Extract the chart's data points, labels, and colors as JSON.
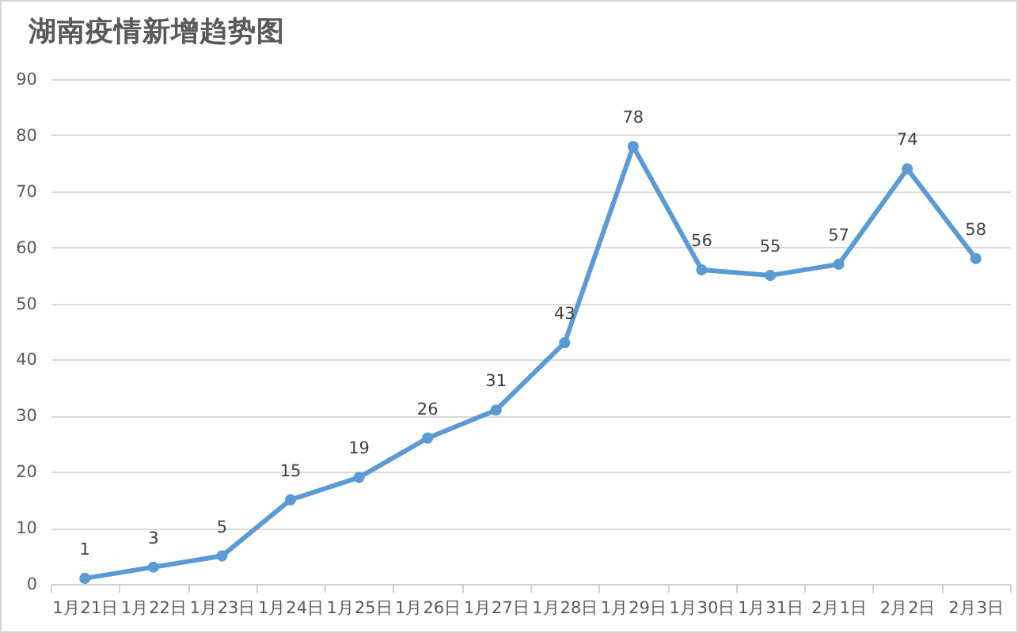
{
  "chart_data": {
    "type": "line",
    "title": "湖南疫情新增趋势图",
    "categories": [
      "1月21日",
      "1月22日",
      "1月23日",
      "1月24日",
      "1月25日",
      "1月26日",
      "1月27日",
      "1月28日",
      "1月29日",
      "1月30日",
      "1月31日",
      "2月1日",
      "2月2日",
      "2月3日"
    ],
    "values": [
      1,
      3,
      5,
      15,
      19,
      26,
      31,
      43,
      78,
      56,
      55,
      57,
      74,
      58
    ],
    "color": "#5b9bd5",
    "ylim": [
      0,
      90
    ],
    "yticks": [
      0,
      10,
      20,
      30,
      40,
      50,
      60,
      70,
      80,
      90
    ],
    "grid": "y",
    "marker": "circle",
    "data_labels": true
  }
}
